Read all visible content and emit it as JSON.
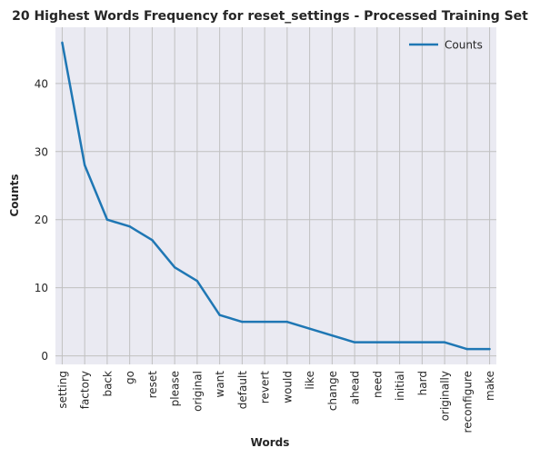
{
  "chart_data": {
    "type": "line",
    "title": "20 Highest Words Frequency for reset_settings - Processed Training Set",
    "xlabel": "Words",
    "ylabel": "Counts",
    "categories": [
      "setting",
      "factory",
      "back",
      "go",
      "reset",
      "please",
      "original",
      "want",
      "default",
      "revert",
      "would",
      "like",
      "change",
      "ahead",
      "need",
      "initial",
      "hard",
      "originally",
      "reconfigure",
      "make"
    ],
    "series": [
      {
        "name": "Counts",
        "values": [
          46,
          28,
          20,
          19,
          17,
          13,
          11,
          6,
          5,
          5,
          5,
          4,
          3,
          2,
          2,
          2,
          2,
          2,
          1,
          1
        ]
      }
    ],
    "yticks": [
      0,
      10,
      20,
      30,
      40
    ],
    "ylim": [
      -1.25,
      48.25
    ],
    "grid": true,
    "legend": "upper-right",
    "colors": {
      "line": "#1f77b4",
      "background": "#eaeaf2",
      "grid": "#c0c0c0"
    }
  }
}
